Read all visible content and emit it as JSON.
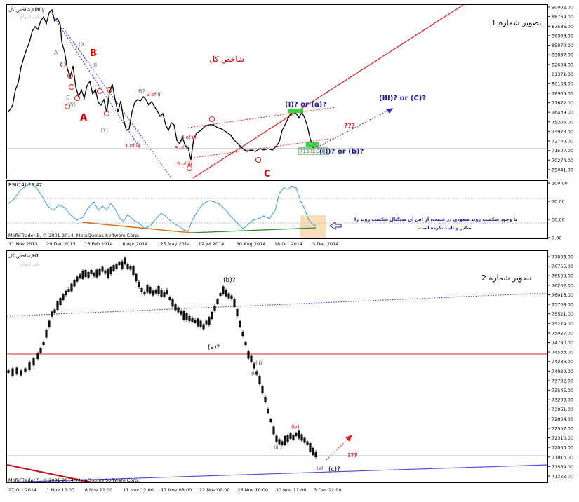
{
  "chart1": {
    "symbol_title": "شاخص کل,Daily",
    "watermark": "علی ابتهاج",
    "caption": "تصویر شماره 1",
    "index_label": "شاخص کل",
    "price_ticks": [
      "90002.00",
      "88769.00",
      "87536.00",
      "86303.00",
      "85070.00",
      "83837.00",
      "82604.00",
      "81371.00",
      "80138.00",
      "78905.00",
      "77672.00",
      "76439.00",
      "75206.00",
      "73973.00",
      "72740.00",
      "71507.00",
      "70274.00",
      "69041.00"
    ],
    "current_price": "71382.38",
    "date_ticks": [
      "11 Nov 2013",
      "29 Dec 2013",
      "16 Feb 2014",
      "8 Apr 2014",
      "25 May 2014",
      "12 Jul 2014",
      "30 Aug 2014",
      "18 Oct 2014",
      "3 Dec 2014"
    ],
    "rsi_title": "RSI(14) 28.47",
    "rsi_ticks": [
      "100.00",
      "70.00",
      "30.00",
      "0.00"
    ],
    "copyright": "MofidTrader 5, © 2001-2014, MetaQuotes Software Corp.",
    "rsi_note_line1": "با وجود شکست روند صعودی در قیمت، آر اس آی سیگنال شکست روند را",
    "rsi_note_line2": "صادر و تایید نکرده است",
    "wave_labels": {
      "B": "B",
      "A": "A",
      "C": "C",
      "b_q": "B?",
      "two_of_iii": "2 of iii",
      "one_of_iii": "1 of iii",
      "three_of_iii": "3 of iii",
      "four_of_iii": "4 of iii",
      "five_of_iii": "5 of iii",
      "i_or_a": "(I)?  or  (a)?",
      "ii_or_b": "(II)?  or  (b)?",
      "iii_or_c": "(III)?  or  (C)?",
      "qqq": "???",
      "X": "(X)",
      "W": "(W)",
      "Y": "(Y)",
      "grey_A": "A",
      "grey_B": "B",
      "grey_C": "C"
    }
  },
  "chart2": {
    "symbol_title": "شاخص کل,H1",
    "watermark": "علی ابتهاج",
    "caption": "تصویر شماره 2",
    "price_ticks": [
      "77003.00",
      "76756.00",
      "76509.00",
      "76262.00",
      "76015.00",
      "75768.00",
      "75521.00",
      "75274.00",
      "75027.00",
      "74780.00",
      "74533.00",
      "74286.00",
      "74039.00",
      "73792.00",
      "73545.00",
      "73298.00",
      "73051.00",
      "72804.00",
      "72557.00",
      "72310.00",
      "72063.00",
      "71816.00",
      "71569.00",
      "71322.00"
    ],
    "date_ticks": [
      "27 Oct 2014",
      "1 Nov 10:00",
      "8 Nov 11:00",
      "11 Nov 12:00",
      "17 Nov 08:00",
      "22 Nov 09:00",
      "25 Nov 10:00",
      "30 Nov 11:00",
      "3 Dec 12:00"
    ],
    "copyright": "MofidTrader 5, © 2001-2014, MetaQuotes Software Corp.",
    "wave_labels": {
      "b_q": "(b)?",
      "a_q": "(a)?",
      "c_q": "(c)?",
      "ii": "(ii)",
      "i": "(i)",
      "iii": "(iii)",
      "iv": "(iv)",
      "v": "(v)",
      "qqq": "???"
    }
  },
  "colors": {
    "price_line": "#000000",
    "rsi_line": "#3a9ae0",
    "trend_red": "#e02020",
    "trend_blue": "#2a2ad0",
    "rsi_orange": "#e86a10",
    "rsi_green": "#2a8a2a",
    "highlight_green": "#3fcf3f",
    "highlight_peach": "#f9dcb8"
  },
  "chart_data": [
    {
      "type": "line",
      "title": "شاخص کل,Daily",
      "x": [
        "11 Nov 2013",
        "29 Dec 2013",
        "16 Feb 2014",
        "8 Apr 2014",
        "25 May 2014",
        "12 Jul 2014",
        "30 Aug 2014",
        "18 Oct 2014",
        "3 Dec 2014"
      ],
      "series": [
        {
          "name": "Close",
          "values": [
            84500,
            89500,
            80000,
            79000,
            71800,
            75100,
            71500,
            76300,
            71382
          ]
        }
      ],
      "ylim": [
        68400,
        90300
      ]
    },
    {
      "type": "line",
      "title": "RSI(14) 28.47",
      "series": [
        {
          "name": "RSI(14)",
          "values": [
            55,
            70,
            48,
            62,
            40,
            72,
            40,
            95,
            28.47
          ]
        }
      ],
      "ylim": [
        0,
        100
      ]
    },
    {
      "type": "bar",
      "title": "شاخص کل,H1",
      "x": [
        "27 Oct 2014",
        "1 Nov 10:00",
        "8 Nov 11:00",
        "11 Nov 12:00",
        "17 Nov 08:00",
        "22 Nov 09:00",
        "25 Nov 10:00",
        "30 Nov 11:00",
        "3 Dec 12:00"
      ],
      "series": [
        {
          "name": "Close",
          "values": [
            74250,
            76400,
            76850,
            76150,
            75300,
            75800,
            73900,
            72150,
            71816
          ]
        }
      ],
      "ylim": [
        71200,
        77100
      ]
    }
  ]
}
